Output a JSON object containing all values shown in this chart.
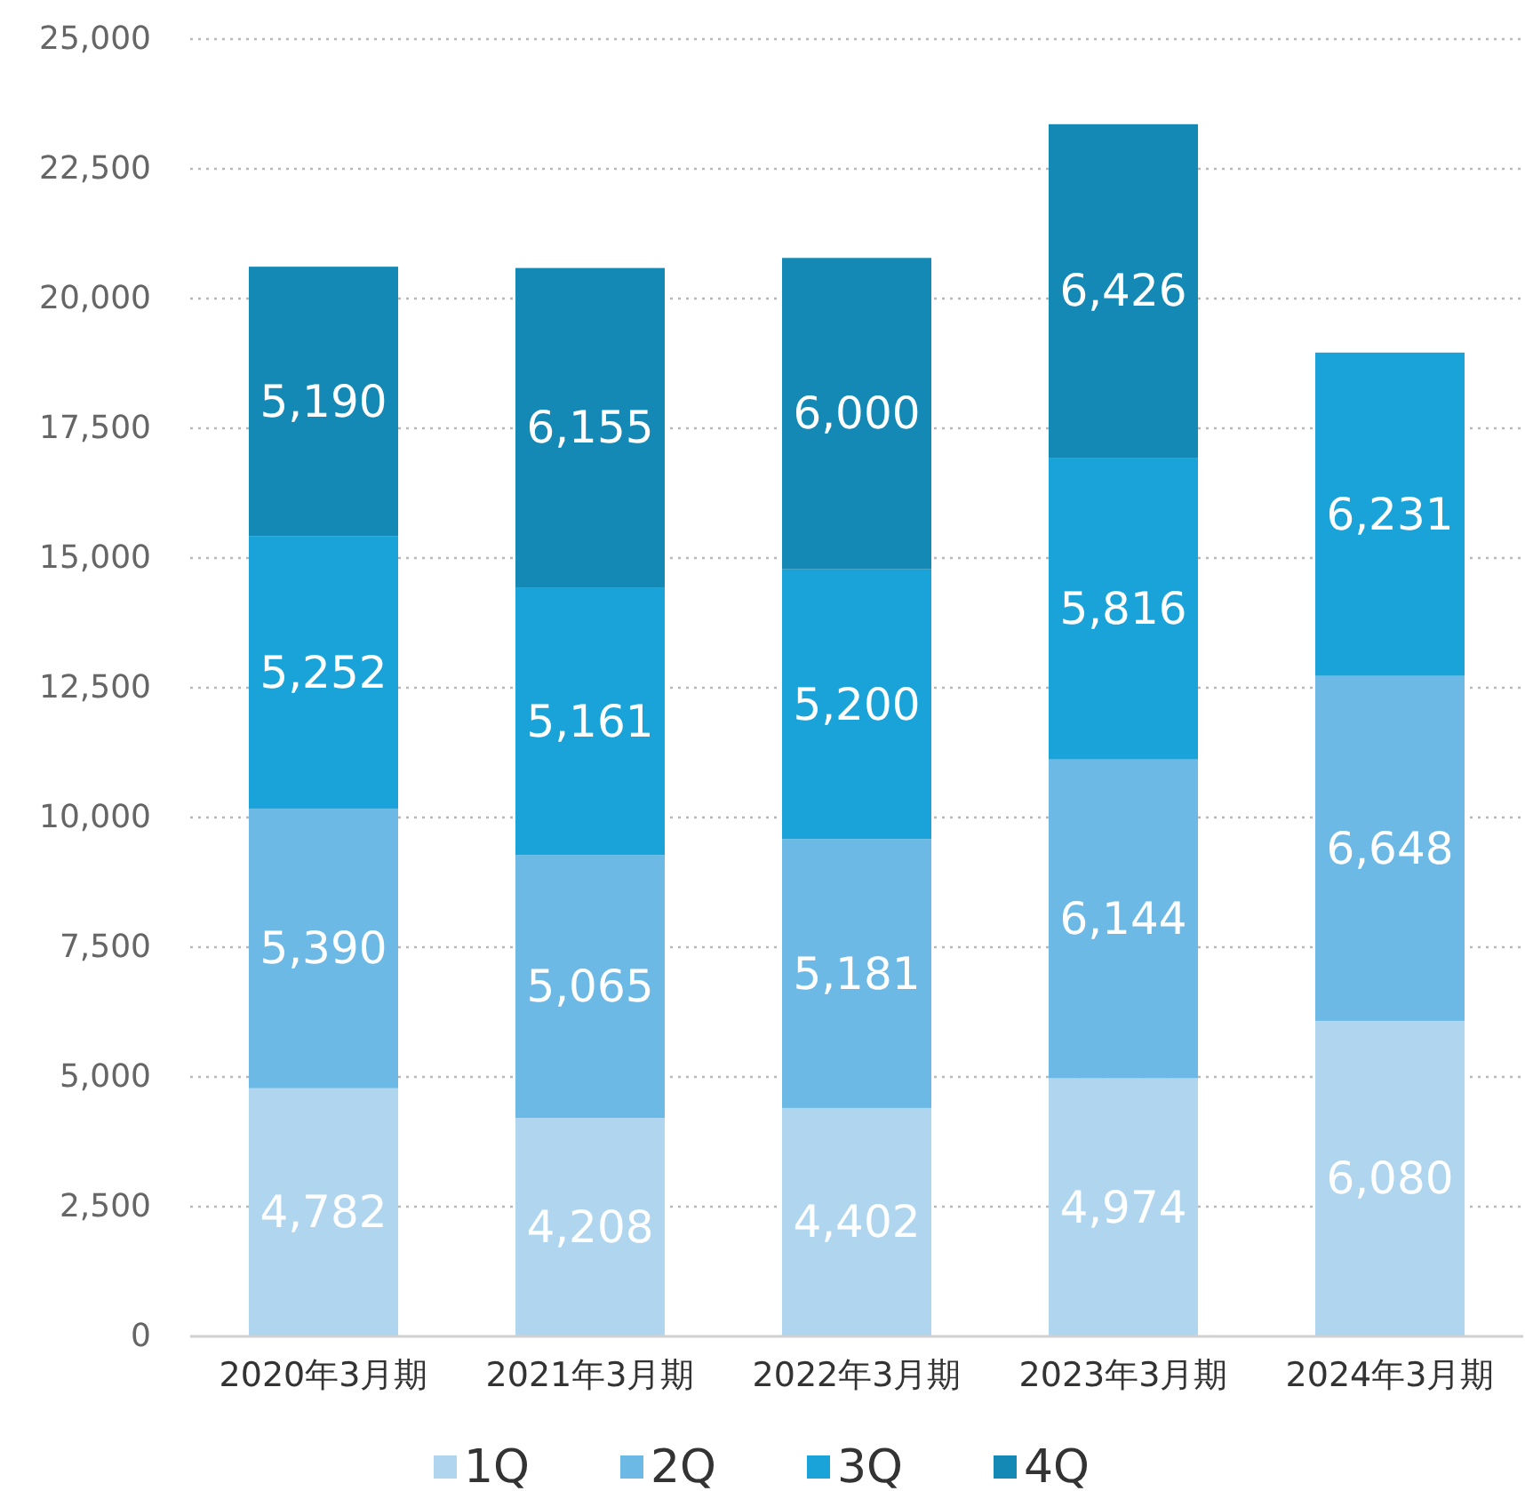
{
  "chart_data": {
    "type": "bar",
    "stacked": true,
    "categories": [
      "2020年3月期",
      "2021年3月期",
      "2022年3月期",
      "2023年3月期",
      "2024年3月期"
    ],
    "series": [
      {
        "name": "1Q",
        "color": "#b0d5ef",
        "values": [
          4782,
          4208,
          4402,
          4974,
          6080
        ],
        "value_labels": [
          "4,782",
          "4,208",
          "4,402",
          "4,974",
          "6,080"
        ]
      },
      {
        "name": "2Q",
        "color": "#6cb9e6",
        "values": [
          5390,
          5065,
          5181,
          6144,
          6648
        ],
        "value_labels": [
          "5,390",
          "5,065",
          "5,181",
          "6,144",
          "6,648"
        ]
      },
      {
        "name": "3Q",
        "color": "#1aa3d9",
        "values": [
          5252,
          5161,
          5200,
          5816,
          6231
        ],
        "value_labels": [
          "5,252",
          "5,161",
          "5,200",
          "5,816",
          "6,231"
        ]
      },
      {
        "name": "4Q",
        "color": "#1489b5",
        "values": [
          5190,
          6155,
          6000,
          6426,
          null
        ],
        "value_labels": [
          "5,190",
          "6,155",
          "6,000",
          "6,426",
          null
        ]
      }
    ],
    "ylim": [
      0,
      25000
    ],
    "yticks": [
      0,
      {
        "value": 2500,
        "label": "2,500"
      },
      {
        "value": 5000,
        "label": "5,000"
      },
      {
        "value": 7500,
        "label": "7,500"
      },
      {
        "value": 10000,
        "label": "10,000"
      },
      {
        "value": 12500,
        "label": "12,500"
      },
      {
        "value": 15000,
        "label": "15,000"
      },
      {
        "value": 17500,
        "label": "17,500"
      },
      {
        "value": 20000,
        "label": "20,000"
      },
      {
        "value": 22500,
        "label": "22,500"
      },
      {
        "value": 25000,
        "label": "25,000"
      }
    ],
    "grid": "y",
    "legend": "bottom"
  }
}
